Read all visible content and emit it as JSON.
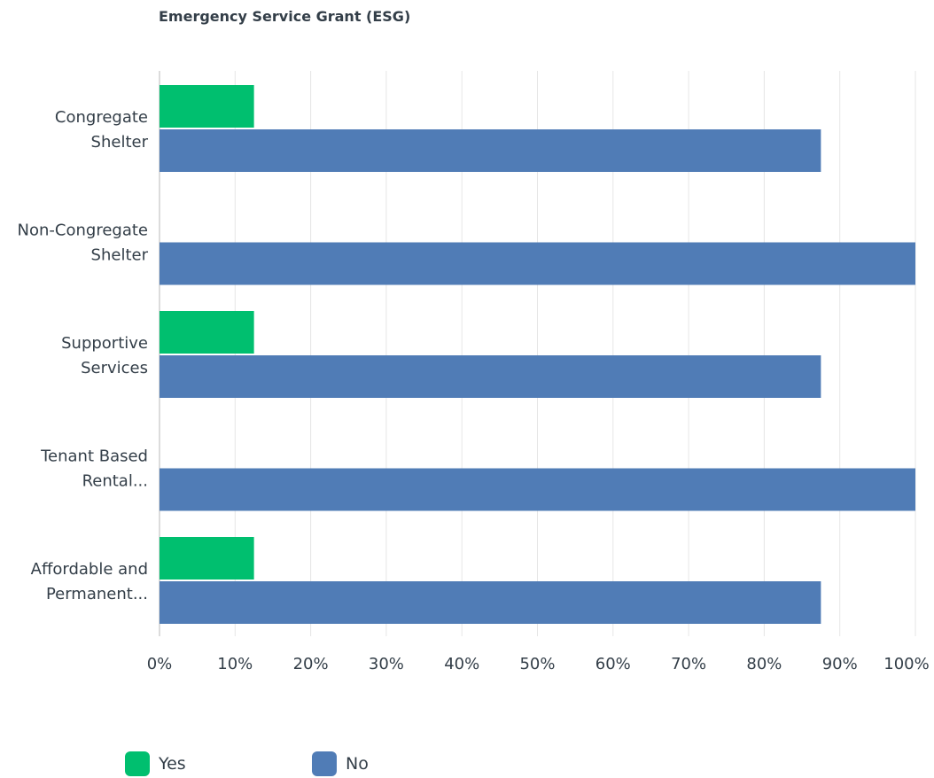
{
  "chart_data": {
    "type": "bar",
    "orientation": "horizontal",
    "title": "Emergency Service Grant (ESG)",
    "categories": [
      [
        "Congregate",
        "Shelter"
      ],
      [
        "Non-Congregate",
        "Shelter"
      ],
      [
        "Supportive",
        "Services"
      ],
      [
        "Tenant Based",
        "Rental..."
      ],
      [
        "Affordable and",
        "Permanent..."
      ]
    ],
    "series": [
      {
        "name": "Yes",
        "color": "#00bf6f",
        "values": [
          12.5,
          0,
          12.5,
          0,
          12.5
        ]
      },
      {
        "name": "No",
        "color": "#507cb6",
        "values": [
          87.5,
          100,
          87.5,
          100,
          87.5
        ]
      }
    ],
    "xlim": [
      0,
      100
    ],
    "xticks": [
      0,
      10,
      20,
      30,
      40,
      50,
      60,
      70,
      80,
      90,
      100
    ],
    "xtick_labels": [
      "0%",
      "10%",
      "20%",
      "30%",
      "40%",
      "50%",
      "60%",
      "70%",
      "80%",
      "90%",
      "100%"
    ],
    "grid": true,
    "legend_position": "bottom-left",
    "colors": {
      "grid": "#e6e6e6",
      "axis": "#d0d0d0",
      "text": "#333e48"
    }
  }
}
